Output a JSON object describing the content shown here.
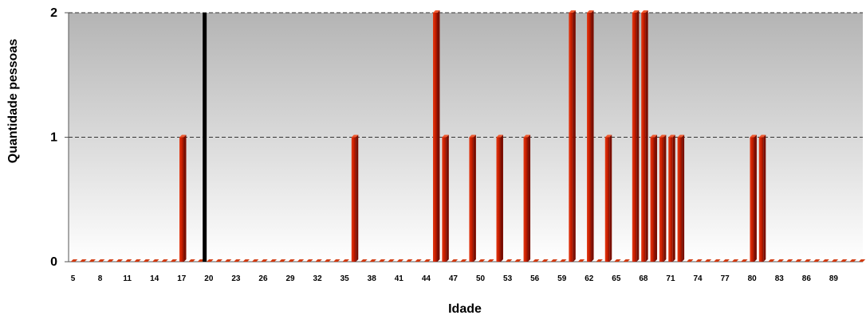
{
  "chart_data": {
    "type": "bar",
    "xlabel": "Idade",
    "ylabel": "Quantidade pessoas",
    "ylim": [
      0,
      2
    ],
    "y_ticks": [
      "0",
      "1",
      "2"
    ],
    "grid": "horizontal dashed at 1 and 2",
    "x_tick_labels": [
      "5",
      "8",
      "11",
      "14",
      "17",
      "20",
      "23",
      "26",
      "29",
      "32",
      "35",
      "38",
      "41",
      "44",
      "47",
      "50",
      "53",
      "56",
      "59",
      "62",
      "65",
      "68",
      "71",
      "74",
      "77",
      "80",
      "83",
      "86",
      "89"
    ],
    "categories": [
      5,
      6,
      7,
      8,
      9,
      10,
      11,
      12,
      13,
      14,
      15,
      16,
      17,
      18,
      19,
      20,
      21,
      22,
      23,
      24,
      25,
      26,
      27,
      28,
      29,
      30,
      31,
      32,
      33,
      34,
      35,
      36,
      37,
      38,
      39,
      40,
      41,
      42,
      43,
      44,
      45,
      46,
      47,
      48,
      49,
      50,
      51,
      52,
      53,
      54,
      55,
      56,
      57,
      58,
      59,
      60,
      61,
      62,
      63,
      64,
      65,
      66,
      67,
      68,
      69,
      70,
      71,
      72,
      73,
      74,
      75,
      76,
      77,
      78,
      79,
      80,
      81,
      82,
      83,
      84,
      85,
      86,
      87,
      88,
      89,
      90,
      91,
      92
    ],
    "values": [
      0,
      0,
      0,
      0,
      0,
      0,
      0,
      0,
      0,
      0,
      0,
      0,
      1,
      0,
      0,
      0,
      0,
      0,
      0,
      0,
      0,
      0,
      0,
      0,
      0,
      0,
      0,
      0,
      0,
      0,
      0,
      1,
      0,
      0,
      0,
      0,
      0,
      0,
      0,
      0,
      2,
      1,
      0,
      0,
      1,
      0,
      0,
      1,
      0,
      0,
      1,
      0,
      0,
      0,
      0,
      2,
      0,
      2,
      0,
      1,
      0,
      0,
      2,
      2,
      1,
      1,
      1,
      1,
      0,
      0,
      0,
      0,
      0,
      0,
      0,
      1,
      1,
      0,
      0,
      0,
      0,
      0,
      0,
      0,
      0,
      0,
      0,
      0
    ],
    "bar_color": "#cc2200",
    "highlight": {
      "value": 19.5,
      "max": 2,
      "color": "#000000"
    }
  }
}
